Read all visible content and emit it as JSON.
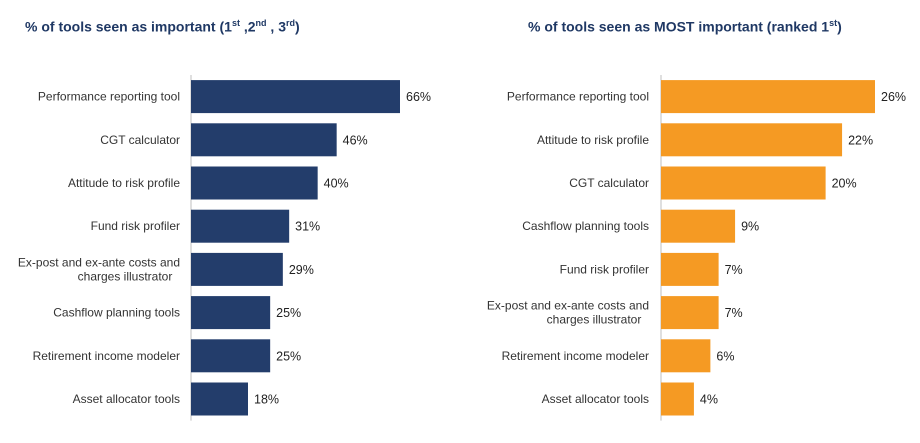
{
  "chart_data": [
    {
      "type": "bar",
      "orientation": "horizontal",
      "title_parts": {
        "main": "% of tools seen as important (1",
        "s1": "st",
        "c1": " ,2",
        "s2": "nd",
        "c2": " , 3",
        "s3": "rd",
        "end": ")"
      },
      "categories": [
        "Performance reporting tool",
        "CGT calculator",
        "Attitude to risk profile",
        "Fund risk profiler",
        "Ex-post and ex-ante costs and charges illustrator",
        "Cashflow planning tools",
        "Retirement income modeler",
        "Asset allocator tools"
      ],
      "category_lines": [
        [
          "Performance reporting tool"
        ],
        [
          "CGT calculator"
        ],
        [
          "Attitude to risk profile"
        ],
        [
          "Fund risk profiler"
        ],
        [
          "Ex-post and ex-ante costs and",
          "charges illustrator"
        ],
        [
          "Cashflow planning tools"
        ],
        [
          "Retirement income modeler"
        ],
        [
          "Asset allocator tools"
        ]
      ],
      "values": [
        66,
        46,
        40,
        31,
        29,
        25,
        25,
        18
      ],
      "value_labels": [
        "66%",
        "46%",
        "40%",
        "31%",
        "29%",
        "25%",
        "25%",
        "18%"
      ],
      "xlim": [
        0,
        66
      ],
      "colors": {
        "bar": "#233d6b",
        "title": "#1f3864"
      }
    },
    {
      "type": "bar",
      "orientation": "horizontal",
      "title_parts": {
        "main": "% of tools seen as MOST important (ranked 1",
        "s1": "st",
        "end": ")"
      },
      "categories": [
        "Performance reporting tool",
        "Attitude to risk profile",
        "CGT calculator",
        "Cashflow planning tools",
        "Fund risk profiler",
        "Ex-post and ex-ante costs and charges illustrator",
        "Retirement income modeler",
        "Asset allocator tools"
      ],
      "category_lines": [
        [
          "Performance reporting tool"
        ],
        [
          "Attitude to risk profile"
        ],
        [
          "CGT calculator"
        ],
        [
          "Cashflow planning tools"
        ],
        [
          "Fund risk profiler"
        ],
        [
          "Ex-post and ex-ante costs and",
          "charges illustrator"
        ],
        [
          "Retirement income modeler"
        ],
        [
          "Asset allocator tools"
        ]
      ],
      "values": [
        26,
        22,
        20,
        9,
        7,
        7,
        6,
        4
      ],
      "value_labels": [
        "26%",
        "22%",
        "20%",
        "9%",
        "7%",
        "7%",
        "6%",
        "4%"
      ],
      "xlim": [
        0,
        26
      ],
      "colors": {
        "bar": "#f59a23",
        "title": "#1f3864"
      }
    }
  ]
}
